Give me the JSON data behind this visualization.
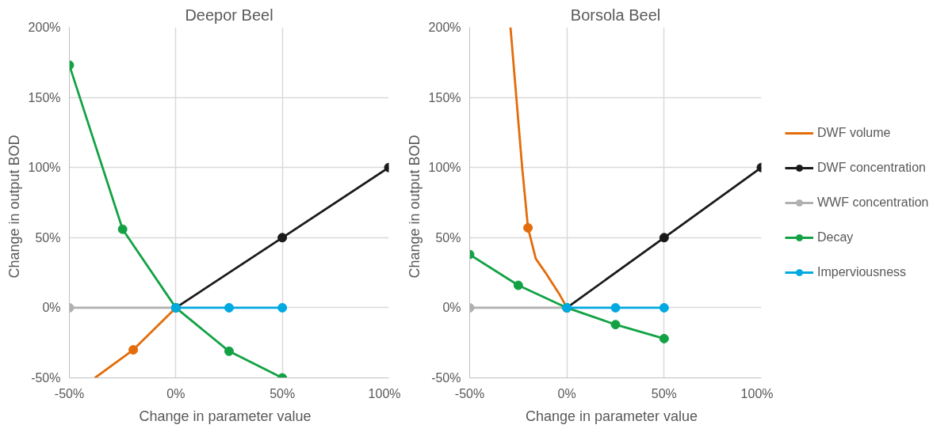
{
  "chart_data": [
    {
      "type": "line",
      "title": "Deepor Beel",
      "xlabel": "Change  in parameter  value",
      "ylabel": "Change  in output  BOD",
      "xlim": [
        -50,
        100
      ],
      "ylim": [
        -50,
        200
      ],
      "xticks": [
        {
          "value": -50,
          "label": "-50%"
        },
        {
          "value": 0,
          "label": "0%"
        },
        {
          "value": 50,
          "label": "50%"
        },
        {
          "value": 100,
          "label": "100%"
        }
      ],
      "yticks": [
        {
          "value": -50,
          "label": "-50%"
        },
        {
          "value": 0,
          "label": "0%"
        },
        {
          "value": 50,
          "label": "50%"
        },
        {
          "value": 100,
          "label": "100%"
        },
        {
          "value": 150,
          "label": "150%"
        },
        {
          "value": 200,
          "label": "200%"
        }
      ],
      "grid": true,
      "legend": false,
      "marker": "circle",
      "series": [
        {
          "color": "#e46c0a",
          "marker": "none",
          "x": [
            -38,
            -20,
            0
          ],
          "values": [
            -50,
            -30,
            0
          ]
        },
        {
          "type": "scatter",
          "color": "#e46c0a",
          "x": [
            -20
          ],
          "values": [
            -30
          ]
        },
        {
          "color": "#1a1a1a",
          "x": [
            0,
            50,
            100
          ],
          "values": [
            0,
            50,
            100
          ]
        },
        {
          "color": "#b0b0b0",
          "x": [
            -50,
            0
          ],
          "values": [
            0,
            0
          ]
        },
        {
          "color": "#12a244",
          "x": [
            -50,
            -25,
            0,
            25,
            50
          ],
          "values": [
            173,
            56,
            0,
            -31,
            -50
          ]
        },
        {
          "color": "#00a9e0",
          "x": [
            0,
            25,
            50
          ],
          "values": [
            0,
            0,
            0
          ]
        }
      ]
    },
    {
      "type": "line",
      "title": "Borsola Beel",
      "xlabel": "Change  in parameter  value",
      "ylabel": "Change  in output  BOD",
      "xlim": [
        -50,
        100
      ],
      "ylim": [
        -50,
        200
      ],
      "xticks": [
        {
          "value": -50,
          "label": "-50%"
        },
        {
          "value": 0,
          "label": "0%"
        },
        {
          "value": 50,
          "label": "50%"
        },
        {
          "value": 100,
          "label": "100%"
        }
      ],
      "yticks": [
        {
          "value": -50,
          "label": "-50%"
        },
        {
          "value": 0,
          "label": "0%"
        },
        {
          "value": 50,
          "label": "50%"
        },
        {
          "value": 100,
          "label": "100%"
        },
        {
          "value": 150,
          "label": "150%"
        },
        {
          "value": 200,
          "label": "200%"
        }
      ],
      "grid": true,
      "legend": "right",
      "marker": "circle",
      "series": [
        {
          "name": "DWF volume",
          "color": "#e46c0a",
          "marker": "none",
          "x": [
            -29,
            -26,
            -23,
            -20,
            -16,
            -11,
            -4,
            0
          ],
          "values": [
            200,
            150,
            100,
            57,
            35,
            25,
            10,
            0
          ]
        },
        {
          "type": "scatter",
          "color": "#e46c0a",
          "x": [
            -20
          ],
          "values": [
            57
          ]
        },
        {
          "name": "DWF concentration",
          "color": "#1a1a1a",
          "x": [
            0,
            50,
            100
          ],
          "values": [
            0,
            50,
            100
          ]
        },
        {
          "name": "WWF concentration",
          "color": "#b0b0b0",
          "x": [
            -50,
            0
          ],
          "values": [
            0,
            0
          ]
        },
        {
          "name": "Decay",
          "color": "#12a244",
          "x": [
            -50,
            -25,
            0,
            25,
            50
          ],
          "values": [
            38,
            16,
            0,
            -12,
            -22
          ]
        },
        {
          "name": "Imperviousness",
          "color": "#00a9e0",
          "x": [
            0,
            25,
            50
          ],
          "values": [
            0,
            0,
            0
          ]
        }
      ]
    }
  ]
}
